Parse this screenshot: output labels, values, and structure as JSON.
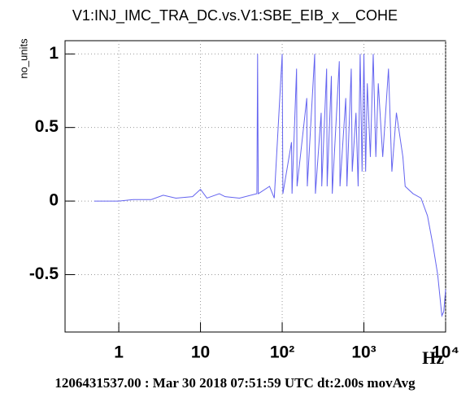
{
  "chart_data": {
    "type": "line",
    "title": "V1:INJ_IMC_TRA_DC.vs.V1:SBE_EIB_x__COHE",
    "ylabel": "no_units",
    "xlabel": "Hz",
    "footer": "1206431537.00 : Mar 30 2018 07:51:59 UTC dt:2.00s movAvg",
    "color": "#6464f0",
    "xscale": "log",
    "grid": true,
    "xlim": [
      0.22,
      10000
    ],
    "ylim": [
      -0.89,
      1.09
    ],
    "xticks": [
      1,
      10,
      {
        "value": 100,
        "label": "10²"
      },
      {
        "value": 1000,
        "label": "10³"
      },
      {
        "value": 10000,
        "label": "10⁴"
      }
    ],
    "yticks": [
      -0.5,
      0,
      0.5,
      1
    ],
    "x": [
      0.5,
      1,
      1.5,
      2.5,
      3.5,
      5,
      8,
      10,
      12,
      17,
      20,
      30,
      49,
      50,
      51,
      70,
      80,
      100,
      102,
      130,
      132,
      150,
      152,
      200,
      203,
      250,
      255,
      300,
      305,
      350,
      355,
      400,
      410,
      500,
      510,
      600,
      620,
      700,
      720,
      800,
      850,
      900,
      950,
      1000,
      1050,
      1100,
      1200,
      1300,
      1400,
      1500,
      1700,
      2000,
      2200,
      2500,
      3000,
      3200,
      4000,
      5000,
      6000,
      7000,
      8000,
      9000,
      9500,
      10000
    ],
    "values": [
      0,
      0,
      0.01,
      0.01,
      0.04,
      0.02,
      0.03,
      0.08,
      0.02,
      0.05,
      0.03,
      0.02,
      0.05,
      1.0,
      0.05,
      0.1,
      0.02,
      1.0,
      0.05,
      0.4,
      0.05,
      0.9,
      0.1,
      0.7,
      0.1,
      1.0,
      0.05,
      0.6,
      0.1,
      0.9,
      0.1,
      0.85,
      0.05,
      0.95,
      0.1,
      0.7,
      0.1,
      0.9,
      0.2,
      0.6,
      0.1,
      1.0,
      0.2,
      1.0,
      0.2,
      0.8,
      0.3,
      1.0,
      0.3,
      0.8,
      0.3,
      0.9,
      0.2,
      0.6,
      0.3,
      0.1,
      0.05,
      0.02,
      -0.1,
      -0.3,
      -0.5,
      -0.78,
      -0.75,
      -0.6
    ]
  }
}
